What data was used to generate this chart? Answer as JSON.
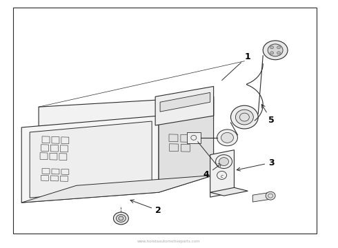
{
  "bg_color": "#ffffff",
  "line_color": "#2a2a2a",
  "label_color": "#000000",
  "fig_width": 4.9,
  "fig_height": 3.6,
  "dpi": 100,
  "watermark": "www.hondaautomotiveparts.com"
}
